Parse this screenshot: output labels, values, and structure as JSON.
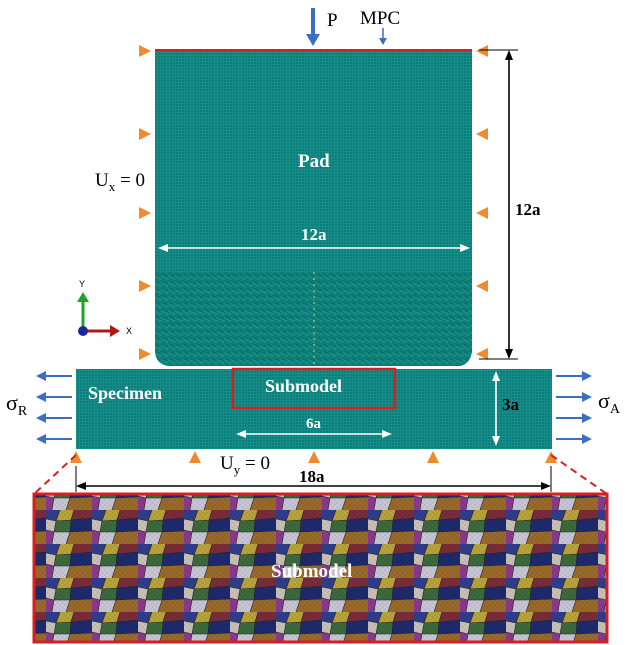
{
  "labels": {
    "load": "P",
    "mpc": "MPC",
    "pad": "Pad",
    "ux": "U",
    "ux_sub": "x",
    "ux_eq": " = 0",
    "pad_width": "12a",
    "pad_height": "12a",
    "axis_y": "Y",
    "axis_x": "X",
    "specimen": "Specimen",
    "submodel_box": "Submodel",
    "specimen_height": "3a",
    "submodel_width": "6a",
    "sigma_r": "σ",
    "sigma_r_sub": "R",
    "sigma_a": "σ",
    "sigma_a_sub": "A",
    "uy": "U",
    "uy_sub": "y",
    "uy_eq": " = 0",
    "specimen_width": "18a",
    "submodel_zoom": "Submodel"
  },
  "colors": {
    "mesh": "#0e8a84",
    "mesh_dark": "#0a6e69",
    "constraint_triangle": "#f08a2c",
    "load_arrow": "#3a6fc4",
    "highlight": "#d42020",
    "axis_x": "#b01818",
    "axis_y": "#22a02a",
    "axis_origin": "#1a2a9a"
  },
  "icons": {
    "constraint": "triangle-marker",
    "load": "down-arrow",
    "traction": "horizontal-arrow"
  }
}
